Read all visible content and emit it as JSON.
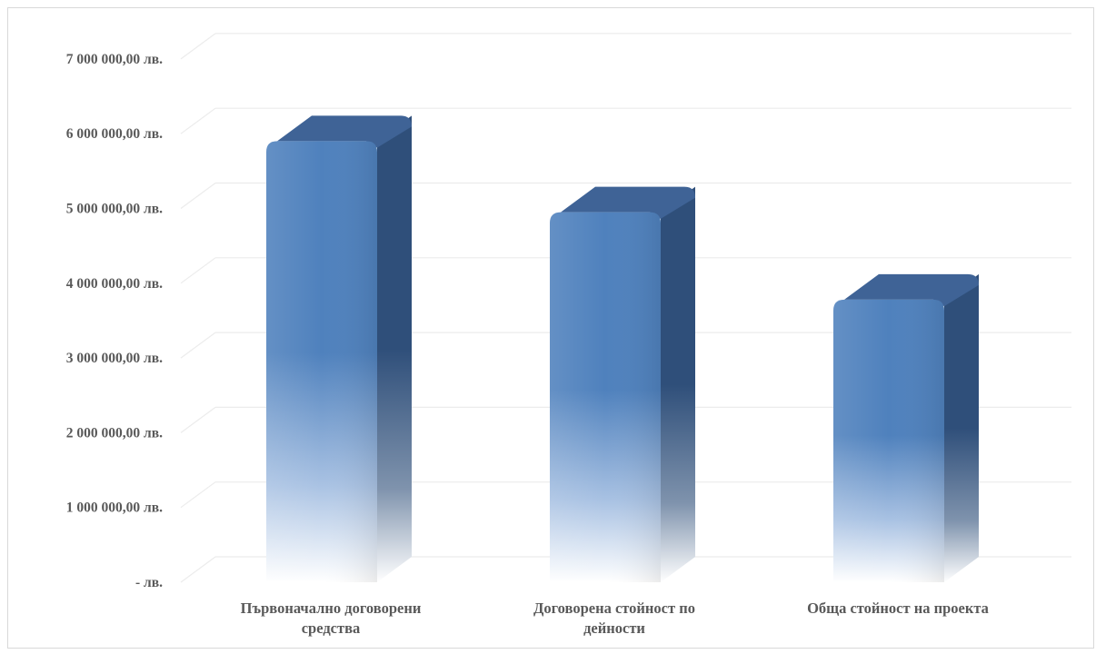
{
  "chart_data": {
    "type": "bar",
    "style": "3d-cylinder-gradient",
    "categories": [
      [
        "Първоначално договорени",
        "средства"
      ],
      [
        "Договорена стойност по",
        "дейности"
      ],
      [
        "Обща стойност на проекта"
      ]
    ],
    "values": [
      5900000,
      4950000,
      3780000
    ],
    "ylim": [
      0,
      7000000
    ],
    "y_ticks": [
      {
        "value": 0,
        "label": "-   лв."
      },
      {
        "value": 1000000,
        "label": "1 000 000,00 лв."
      },
      {
        "value": 2000000,
        "label": "2 000 000,00 лв."
      },
      {
        "value": 3000000,
        "label": "3 000 000,00 лв."
      },
      {
        "value": 4000000,
        "label": "4 000 000,00 лв."
      },
      {
        "value": 5000000,
        "label": "5 000 000,00 лв."
      },
      {
        "value": 6000000,
        "label": "6 000 000,00 лв."
      },
      {
        "value": 7000000,
        "label": "7 000 000,00 лв."
      }
    ],
    "grid": true,
    "legend": "none",
    "colors": {
      "front": "#4f81bd",
      "side": "#2f4f7a",
      "top": "#3f6396",
      "grid": "#ececec",
      "text": "#595959"
    }
  }
}
